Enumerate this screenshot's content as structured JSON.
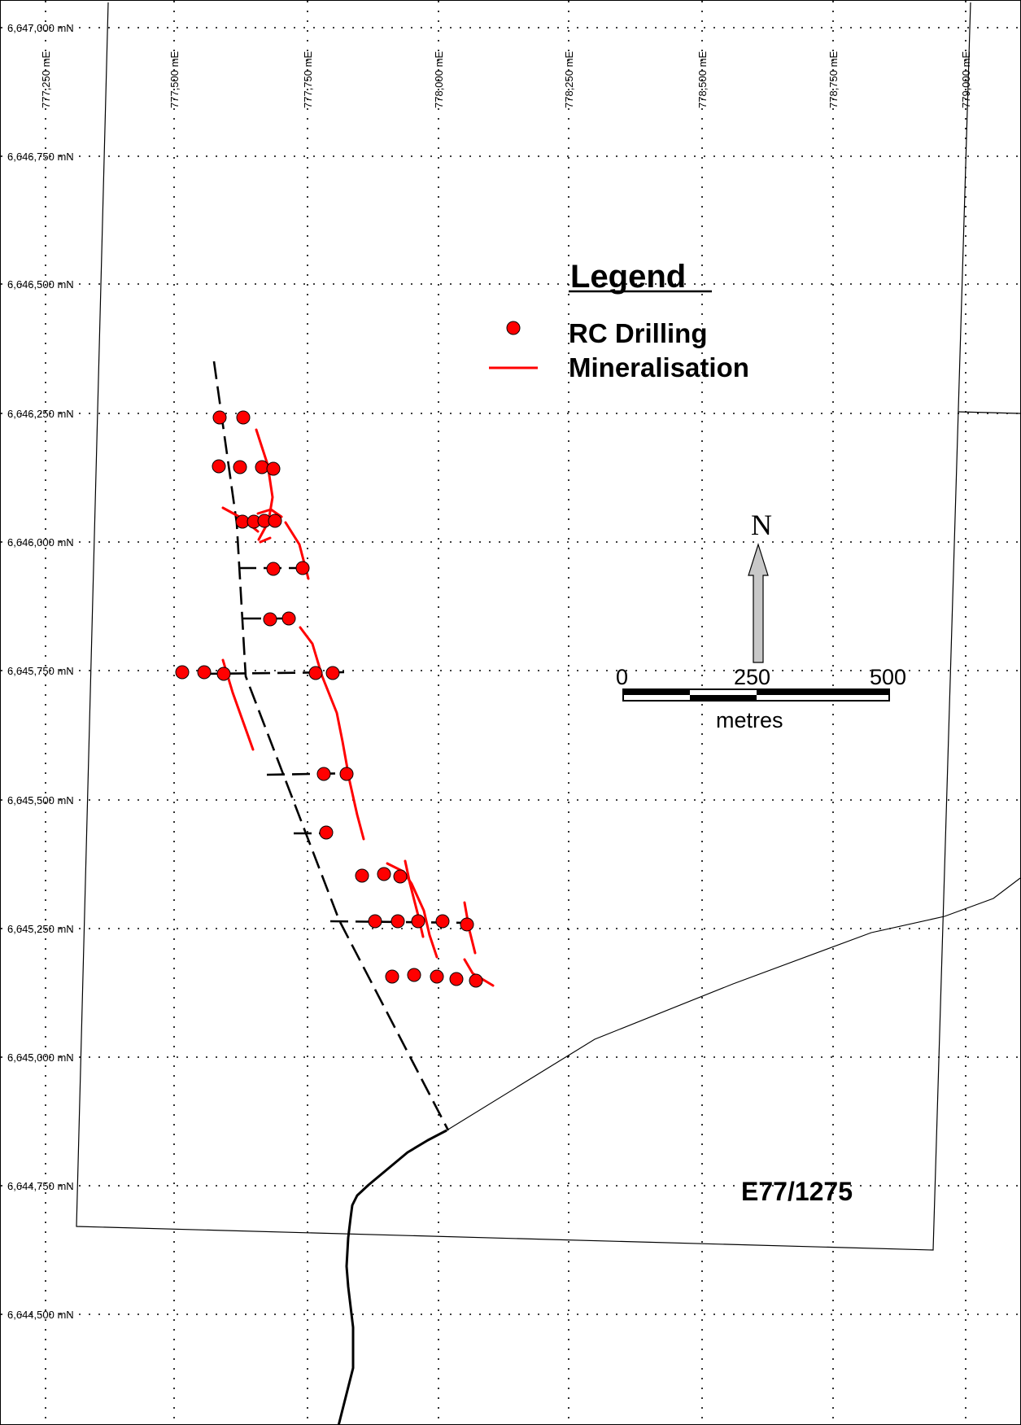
{
  "map": {
    "easting_labels": [
      "777,250 mE",
      "777,500 mE",
      "777,750 mE",
      "778,000 mE",
      "778,250 mE",
      "778,500 mE",
      "778,750 mE",
      "779,000 mE"
    ],
    "northing_labels": [
      "6,647,000 mN",
      "6,646,750 mN",
      "6,646,500 mN",
      "6,646,250 mN",
      "6,646,000 mN",
      "6,645,750 mN",
      "6,645,500 mN",
      "6,645,250 mN",
      "6,645,000 mN",
      "6,644,750 mN",
      "6,644,500 mN"
    ],
    "colors": {
      "drilling": "#ff0000",
      "mineralisation": "#ff0000",
      "lines": "#000000"
    },
    "tenement_id": "E77/1275"
  },
  "legend": {
    "title": "Legend",
    "items": [
      {
        "label": "RC Drilling",
        "symbol": "red-dot-icon"
      },
      {
        "label": "Mineralisation",
        "symbol": "red-line-icon"
      }
    ]
  },
  "north_arrow": {
    "label": "N"
  },
  "scale_bar": {
    "labels": [
      "0",
      "250",
      "500"
    ],
    "unit": "metres"
  }
}
